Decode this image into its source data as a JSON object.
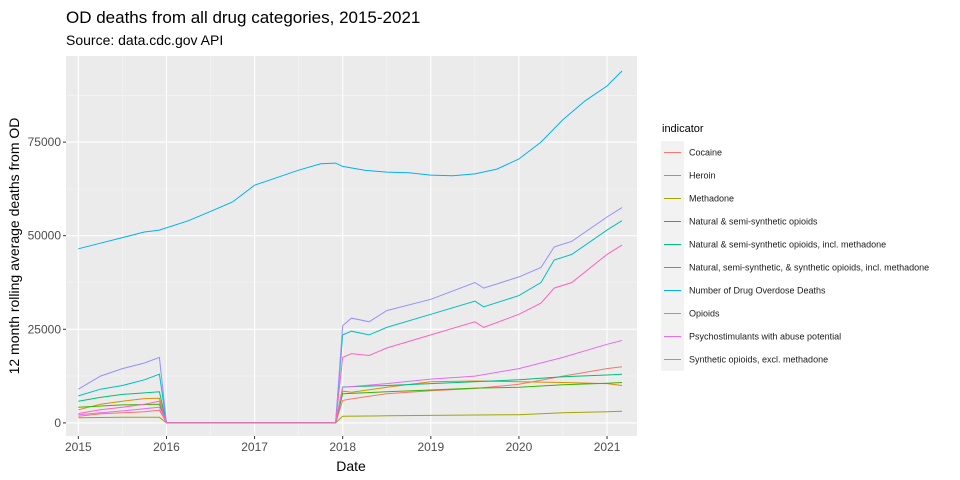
{
  "chart_data": {
    "type": "line",
    "title": "OD deaths from all drug categories, 2015-2021",
    "subtitle": "Source: data.cdc.gov API",
    "xlabel": "Date",
    "ylabel": "12 month rolling average deaths from OD",
    "xlim": [
      2014.86,
      2021.34
    ],
    "ylim": [
      -3500,
      98000
    ],
    "x_ticks": [
      2015,
      2016,
      2017,
      2018,
      2019,
      2020,
      2021
    ],
    "x_tick_labels": [
      "2015",
      "2016",
      "2017",
      "2018",
      "2019",
      "2020",
      "2021"
    ],
    "y_ticks": [
      0,
      25000,
      50000,
      75000
    ],
    "y_tick_labels": [
      "0",
      "25000",
      "50000",
      "75000"
    ],
    "grid": true,
    "legend_title": "indicator",
    "legend_position": "right",
    "series": [
      {
        "name": "Cocaine",
        "color": "#F8766D",
        "points": [
          [
            2015,
            1800
          ],
          [
            2015.25,
            2400
          ],
          [
            2015.5,
            2700
          ],
          [
            2015.75,
            3000
          ],
          [
            2015.92,
            3400
          ],
          [
            2016,
            0
          ],
          [
            2017.92,
            0
          ],
          [
            2018,
            6000
          ],
          [
            2018.1,
            6400
          ],
          [
            2018.5,
            7800
          ],
          [
            2019,
            8600
          ],
          [
            2019.5,
            9200
          ],
          [
            2020,
            10300
          ],
          [
            2020.5,
            12500
          ],
          [
            2021,
            14500
          ],
          [
            2021.17,
            15000
          ]
        ]
      },
      {
        "name": "Heroin",
        "color": "#D89000",
        "points": [
          [
            2015,
            3500
          ],
          [
            2015.25,
            5000
          ],
          [
            2015.5,
            5800
          ],
          [
            2015.75,
            6500
          ],
          [
            2015.92,
            6600
          ],
          [
            2016,
            0
          ],
          [
            2017.92,
            0
          ],
          [
            2018,
            8500
          ],
          [
            2018.1,
            8200
          ],
          [
            2018.5,
            9500
          ],
          [
            2019,
            11000
          ],
          [
            2019.5,
            11200
          ],
          [
            2020,
            11000
          ],
          [
            2020.5,
            10800
          ],
          [
            2021,
            10500
          ],
          [
            2021.17,
            10000
          ]
        ]
      },
      {
        "name": "Methadone",
        "color": "#A3A500",
        "points": [
          [
            2015,
            1400
          ],
          [
            2015.5,
            1500
          ],
          [
            2015.92,
            1500
          ],
          [
            2016,
            0
          ],
          [
            2017.92,
            0
          ],
          [
            2018,
            1800
          ],
          [
            2018.5,
            1900
          ],
          [
            2019,
            2000
          ],
          [
            2019.5,
            2100
          ],
          [
            2020,
            2200
          ],
          [
            2020.5,
            2700
          ],
          [
            2021,
            3000
          ],
          [
            2021.17,
            3100
          ]
        ]
      },
      {
        "name": "Natural & semi-synthetic opioids",
        "color": "#39B600",
        "points": [
          [
            2015,
            4200
          ],
          [
            2015.5,
            4800
          ],
          [
            2015.92,
            5000
          ],
          [
            2016,
            0
          ],
          [
            2017.92,
            0
          ],
          [
            2018,
            7800
          ],
          [
            2018.5,
            8300
          ],
          [
            2019,
            8800
          ],
          [
            2019.5,
            9300
          ],
          [
            2020,
            9500
          ],
          [
            2020.5,
            10200
          ],
          [
            2021,
            10600
          ],
          [
            2021.17,
            10800
          ]
        ]
      },
      {
        "name": "Natural & semi-synthetic opioids, incl. methadone",
        "color": "#00BF7D",
        "points": [
          [
            2015,
            5800
          ],
          [
            2015.25,
            6800
          ],
          [
            2015.5,
            7600
          ],
          [
            2015.75,
            8000
          ],
          [
            2015.92,
            8300
          ],
          [
            2016,
            0
          ],
          [
            2017.92,
            0
          ],
          [
            2018,
            9600
          ],
          [
            2018.5,
            10000
          ],
          [
            2019,
            10500
          ],
          [
            2019.5,
            11000
          ],
          [
            2020,
            11500
          ],
          [
            2020.5,
            12300
          ],
          [
            2021,
            12800
          ],
          [
            2021.17,
            13000
          ]
        ]
      },
      {
        "name": "Natural, semi-synthetic, & synthetic opioids, incl. methadone",
        "color": "#00BFC4",
        "points": [
          [
            2015,
            7200
          ],
          [
            2015.25,
            9000
          ],
          [
            2015.5,
            10000
          ],
          [
            2015.75,
            11500
          ],
          [
            2015.92,
            13000
          ],
          [
            2016,
            0
          ],
          [
            2017.92,
            0
          ],
          [
            2018,
            23500
          ],
          [
            2018.1,
            24500
          ],
          [
            2018.3,
            23500
          ],
          [
            2018.5,
            25500
          ],
          [
            2019,
            29000
          ],
          [
            2019.5,
            32500
          ],
          [
            2019.6,
            31000
          ],
          [
            2020,
            34000
          ],
          [
            2020.25,
            37500
          ],
          [
            2020.4,
            43500
          ],
          [
            2020.6,
            45000
          ],
          [
            2021,
            51500
          ],
          [
            2021.17,
            54000
          ]
        ]
      },
      {
        "name": "Number of Drug Overdose Deaths",
        "color": "#00B0F6",
        "points": [
          [
            2015,
            46500
          ],
          [
            2015.25,
            48000
          ],
          [
            2015.5,
            49500
          ],
          [
            2015.75,
            51000
          ],
          [
            2015.92,
            51500
          ],
          [
            2016.25,
            54000
          ],
          [
            2016.5,
            56500
          ],
          [
            2016.75,
            59000
          ],
          [
            2017,
            63500
          ],
          [
            2017.25,
            65500
          ],
          [
            2017.5,
            67500
          ],
          [
            2017.75,
            69200
          ],
          [
            2017.92,
            69400
          ],
          [
            2018,
            68500
          ],
          [
            2018.25,
            67500
          ],
          [
            2018.5,
            67000
          ],
          [
            2018.75,
            66800
          ],
          [
            2019,
            66200
          ],
          [
            2019.25,
            66000
          ],
          [
            2019.5,
            66500
          ],
          [
            2019.75,
            67800
          ],
          [
            2020,
            70500
          ],
          [
            2020.25,
            75000
          ],
          [
            2020.5,
            81000
          ],
          [
            2020.75,
            86000
          ],
          [
            2021,
            90000
          ],
          [
            2021.17,
            94000
          ]
        ]
      },
      {
        "name": "Opioids",
        "color": "#9590FF",
        "points": [
          [
            2015,
            9000
          ],
          [
            2015.25,
            12500
          ],
          [
            2015.5,
            14500
          ],
          [
            2015.75,
            16000
          ],
          [
            2015.92,
            17500
          ],
          [
            2016,
            0
          ],
          [
            2017.92,
            0
          ],
          [
            2018,
            26000
          ],
          [
            2018.1,
            28000
          ],
          [
            2018.3,
            27000
          ],
          [
            2018.5,
            30000
          ],
          [
            2019,
            33000
          ],
          [
            2019.5,
            37500
          ],
          [
            2019.6,
            36000
          ],
          [
            2020,
            39000
          ],
          [
            2020.25,
            41500
          ],
          [
            2020.4,
            47000
          ],
          [
            2020.6,
            48500
          ],
          [
            2021,
            55000
          ],
          [
            2021.17,
            57500
          ]
        ]
      },
      {
        "name": "Psychostimulants with abuse potential",
        "color": "#E76BF3",
        "points": [
          [
            2015,
            2200
          ],
          [
            2015.5,
            3200
          ],
          [
            2015.92,
            4200
          ],
          [
            2016,
            0
          ],
          [
            2017.92,
            0
          ],
          [
            2018,
            9500
          ],
          [
            2018.5,
            10500
          ],
          [
            2019,
            11700
          ],
          [
            2019.5,
            12500
          ],
          [
            2020,
            14500
          ],
          [
            2020.5,
            17500
          ],
          [
            2021,
            21000
          ],
          [
            2021.17,
            22000
          ]
        ]
      },
      {
        "name": "Synthetic opioids, excl. methadone",
        "color": "#FF62BC",
        "points": [
          [
            2015,
            2500
          ],
          [
            2015.25,
            3500
          ],
          [
            2015.5,
            4200
          ],
          [
            2015.75,
            5000
          ],
          [
            2015.92,
            5800
          ],
          [
            2016,
            0
          ],
          [
            2017.92,
            0
          ],
          [
            2018,
            17500
          ],
          [
            2018.1,
            18500
          ],
          [
            2018.3,
            18000
          ],
          [
            2018.5,
            20000
          ],
          [
            2019,
            23500
          ],
          [
            2019.5,
            27000
          ],
          [
            2019.6,
            25500
          ],
          [
            2020,
            29000
          ],
          [
            2020.25,
            32000
          ],
          [
            2020.4,
            36000
          ],
          [
            2020.6,
            37500
          ],
          [
            2021,
            45000
          ],
          [
            2021.17,
            47500
          ]
        ]
      }
    ]
  }
}
